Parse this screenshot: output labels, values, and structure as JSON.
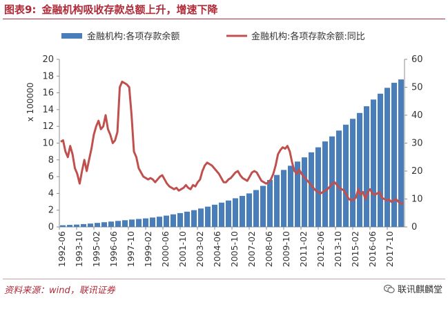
{
  "header": {
    "figure_label": "图表9:",
    "title": "金融机构吸收存款总额上升，增速下降"
  },
  "footer": {
    "source": "资料来源：wind，联讯证券",
    "wechat_label": "联讯麒麟堂",
    "wechat_icon": "wechat-icon"
  },
  "chart_data": {
    "type": "bar+line",
    "legend_placement": "top",
    "grid": false,
    "multiplier_label": "x 100000",
    "left_axis": {
      "min": 0,
      "max": 20,
      "ticks": [
        "0",
        "2",
        "4",
        "6",
        "8",
        "10",
        "12",
        "14",
        "16",
        "18",
        "20"
      ]
    },
    "right_axis": {
      "min": 0,
      "max": 60,
      "ticks": [
        "0",
        "10",
        "20",
        "30",
        "40",
        "50",
        "60"
      ]
    },
    "x_tick_labels": [
      "1992-06",
      "1993-10",
      "1995-02",
      "1996-06",
      "1997-10",
      "1999-02",
      "2000-06",
      "2001-10",
      "2003-02",
      "2004-06",
      "2005-10",
      "2007-02",
      "2008-06",
      "2009-10",
      "2011-02",
      "2012-06",
      "2013-10",
      "2015-02",
      "2016-06",
      "2017-10"
    ],
    "series": [
      {
        "name": "金融机构:各项存款余额",
        "kind": "bar",
        "axis": "left",
        "color": "#4a7ebb",
        "values": [
          0.2,
          0.24,
          0.28,
          0.34,
          0.4,
          0.48,
          0.56,
          0.64,
          0.72,
          0.8,
          0.88,
          0.95,
          1.02,
          1.12,
          1.22,
          1.35,
          1.5,
          1.65,
          1.82,
          2.0,
          2.2,
          2.42,
          2.65,
          2.9,
          3.15,
          3.42,
          3.7,
          4.0,
          4.4,
          4.9,
          5.6,
          6.2,
          6.8,
          7.3,
          7.8,
          8.3,
          8.9,
          9.5,
          10.2,
          10.8,
          11.5,
          12.2,
          12.9,
          13.6,
          14.4,
          15.2,
          15.9,
          16.6,
          17.2,
          17.6
        ]
      },
      {
        "name": "金融机构:各项存款余额:同比",
        "kind": "line",
        "axis": "right",
        "color": "#c0504d",
        "values": [
          30.5,
          31.0,
          27.0,
          25.0,
          29.0,
          26.0,
          21.0,
          19.0,
          15.5,
          20.0,
          24.0,
          20.0,
          24.0,
          28.0,
          33.0,
          36.0,
          38.0,
          35.0,
          36.0,
          40.0,
          35.0,
          33.0,
          30.0,
          31.0,
          34.0,
          50.0,
          52.0,
          51.5,
          51.0,
          50.0,
          40.0,
          27.0,
          25.0,
          21.0,
          19.5,
          18.0,
          17.5,
          17.0,
          17.5,
          17.0,
          16.0,
          17.0,
          18.0,
          18.5,
          17.0,
          15.5,
          14.5,
          14.0,
          13.5,
          14.0,
          13.0,
          13.5,
          14.0,
          15.0,
          14.0,
          13.5,
          15.0,
          14.5,
          16.0,
          17.0,
          20.0,
          22.0,
          23.0,
          22.5,
          22.0,
          21.0,
          20.0,
          19.0,
          17.5,
          16.0,
          16.0,
          17.0,
          17.5,
          18.5,
          19.5,
          20.0,
          18.5,
          17.5,
          17.0,
          16.5,
          18.0,
          19.5,
          20.0,
          19.5,
          18.0,
          16.5,
          16.0,
          15.5,
          16.0,
          17.0,
          19.0,
          22.0,
          26.0,
          27.5,
          28.5,
          28.0,
          29.0,
          27.0,
          23.0,
          20.0,
          19.0,
          20.5,
          19.0,
          18.0,
          17.0,
          16.0,
          15.0,
          14.0,
          13.0,
          12.5,
          12.0,
          12.5,
          13.0,
          13.5,
          14.5,
          15.5,
          16.0,
          15.0,
          14.0,
          13.5,
          13.0,
          11.5,
          10.0,
          9.5,
          9.8,
          10.5,
          13.5,
          11.5,
          12.5,
          10.0,
          12.5,
          13.5,
          12.0,
          11.5,
          12.0,
          12.5,
          10.5,
          10.0,
          9.5,
          9.8,
          9.0,
          9.5,
          10.0,
          9.0,
          8.5,
          8.2
        ]
      }
    ]
  }
}
